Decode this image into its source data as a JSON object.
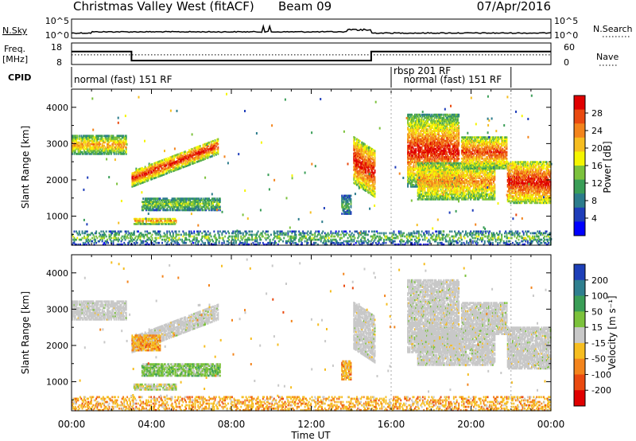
{
  "header": {
    "title": "Christmas Valley West (fitACF)",
    "beam": "Beam 09",
    "date": "07/Apr/2016"
  },
  "noise_panel": {
    "left_label": "N.Sky",
    "right_label": "N.Search",
    "left_ticks": [
      "10^5",
      "10^0"
    ],
    "right_ticks": [
      "10^5",
      "10^0"
    ]
  },
  "freq_panel": {
    "left_label_line1": "Freq.",
    "left_label_line2": "[MHz]",
    "right_label": "Nave",
    "left_ticks": [
      "18",
      "8"
    ],
    "right_ticks": [
      "60",
      "0"
    ],
    "segments": [
      {
        "start_h": 0,
        "end_h": 3.0,
        "freq_mhz": 14.0
      },
      {
        "start_h": 3.0,
        "end_h": 15.0,
        "freq_mhz": 9.8
      },
      {
        "start_h": 15.0,
        "end_h": 24.0,
        "freq_mhz": 14.0
      }
    ],
    "nave_level": 0.45
  },
  "cpid": {
    "label": "CPID",
    "programs": [
      {
        "text": "normal (fast) 151 RF",
        "start_h": 0.0,
        "row": 1
      },
      {
        "text": "rbsp 201 RF",
        "start_h": 16.0,
        "row": 0
      },
      {
        "text": "normal (fast) 151 RF",
        "start_h": 16.5,
        "row": 1
      }
    ],
    "divider_hours": [
      0.0,
      16.0,
      22.0
    ]
  },
  "chart_data": [
    {
      "type": "heatmap",
      "title": "",
      "xlabel": "Time UT",
      "ylabel": "Slant Range [km]",
      "xlim": [
        0,
        24
      ],
      "ylim": [
        200,
        4500
      ],
      "x_ticks": [
        "00:00",
        "04:00",
        "08:00",
        "12:00",
        "16:00",
        "20:00",
        "00:00"
      ],
      "y_ticks": [
        "1000",
        "2000",
        "3000",
        "4000"
      ],
      "colorbar": {
        "label": "Power [dB]",
        "ticks": [
          "4",
          "8",
          "12",
          "16",
          "20",
          "24",
          "28"
        ],
        "colors": [
          "#0000ff",
          "#1e3dba",
          "#2c7c8c",
          "#3a9e57",
          "#7cc23c",
          "#f5f500",
          "#f6bd20",
          "#f3841c",
          "#ea4a10",
          "#e00000"
        ]
      },
      "regions": [
        {
          "t0": 0.0,
          "t1": 2.7,
          "r_top": 3200,
          "r_bot": 2700,
          "slope": 0,
          "pmin": 10,
          "pmax": 22
        },
        {
          "t0": 3.0,
          "t1": 7.3,
          "r_top": 2250,
          "r_bot": 1800,
          "slope": 900,
          "pmin": 12,
          "pmax": 28
        },
        {
          "t0": 3.1,
          "t1": 5.2,
          "r_top": 950,
          "r_bot": 770,
          "slope": 0,
          "pmin": 12,
          "pmax": 22
        },
        {
          "t0": 3.5,
          "t1": 7.4,
          "r_top": 1500,
          "r_bot": 1150,
          "slope": 0,
          "pmin": 8,
          "pmax": 14
        },
        {
          "t0": 14.1,
          "t1": 15.2,
          "r_top": 3200,
          "r_bot": 1900,
          "slope": -400,
          "pmin": 14,
          "pmax": 28
        },
        {
          "t0": 16.8,
          "t1": 19.4,
          "r_top": 3800,
          "r_bot": 1800,
          "slope": 0,
          "pmin": 10,
          "pmax": 28
        },
        {
          "t0": 17.3,
          "t1": 21.2,
          "r_top": 2450,
          "r_bot": 1450,
          "slope": 0,
          "pmin": 12,
          "pmax": 22
        },
        {
          "t0": 19.5,
          "t1": 21.8,
          "r_top": 3200,
          "r_bot": 2300,
          "slope": 0,
          "pmin": 12,
          "pmax": 26
        },
        {
          "t0": 21.8,
          "t1": 24.0,
          "r_top": 2500,
          "r_bot": 1350,
          "slope": 0,
          "pmin": 14,
          "pmax": 28
        },
        {
          "t0": 13.5,
          "t1": 14.0,
          "r_top": 1550,
          "r_bot": 1050,
          "slope": 0,
          "pmin": 6,
          "pmax": 12
        },
        {
          "t0": 0.0,
          "t1": 24.0,
          "r_top": 600,
          "r_bot": 200,
          "slope": 0,
          "pmin": 4,
          "pmax": 14
        }
      ]
    },
    {
      "type": "heatmap",
      "title": "",
      "xlabel": "Time UT",
      "ylabel": "Slant Range [km]",
      "xlim": [
        0,
        24
      ],
      "ylim": [
        200,
        4500
      ],
      "x_ticks": [
        "00:00",
        "04:00",
        "08:00",
        "12:00",
        "16:00",
        "20:00",
        "00:00"
      ],
      "y_ticks": [
        "1000",
        "2000",
        "3000",
        "4000"
      ],
      "colorbar": {
        "label": "Velocity [m s⁻¹]",
        "ticks": [
          "200",
          "100",
          "50",
          "15",
          "-15",
          "-50",
          "-100",
          "-200"
        ],
        "colors": [
          "#1d3fb8",
          "#2f7f8f",
          "#3a9e57",
          "#7cc23c",
          "#c8c8c8",
          "#f6bd20",
          "#f3841c",
          "#ea4a10",
          "#e00000"
        ]
      },
      "regions": [
        {
          "t0": 0.0,
          "t1": 2.7,
          "r_top": 3200,
          "r_bot": 2700,
          "slope": 0,
          "vclass": "gray"
        },
        {
          "t0": 3.0,
          "t1": 7.3,
          "r_top": 2250,
          "r_bot": 1800,
          "slope": 900,
          "vclass": "gray"
        },
        {
          "t0": 3.0,
          "t1": 4.4,
          "r_top": 2300,
          "r_bot": 1850,
          "slope": 0,
          "vclass": "orange"
        },
        {
          "t0": 3.1,
          "t1": 5.2,
          "r_top": 950,
          "r_bot": 770,
          "slope": 0,
          "vclass": "mix"
        },
        {
          "t0": 3.5,
          "t1": 7.4,
          "r_top": 1500,
          "r_bot": 1150,
          "slope": 0,
          "vclass": "green"
        },
        {
          "t0": 14.1,
          "t1": 15.2,
          "r_top": 3200,
          "r_bot": 1900,
          "slope": -400,
          "vclass": "gray"
        },
        {
          "t0": 16.8,
          "t1": 19.4,
          "r_top": 3800,
          "r_bot": 1800,
          "slope": 0,
          "vclass": "gray"
        },
        {
          "t0": 17.3,
          "t1": 21.2,
          "r_top": 2450,
          "r_bot": 1450,
          "slope": 0,
          "vclass": "gray"
        },
        {
          "t0": 19.5,
          "t1": 21.8,
          "r_top": 3200,
          "r_bot": 2300,
          "slope": 0,
          "vclass": "gray"
        },
        {
          "t0": 21.8,
          "t1": 24.0,
          "r_top": 2500,
          "r_bot": 1350,
          "slope": 0,
          "vclass": "gray"
        },
        {
          "t0": 13.5,
          "t1": 14.0,
          "r_top": 1550,
          "r_bot": 1050,
          "slope": 0,
          "vclass": "orange"
        },
        {
          "t0": 0.0,
          "t1": 24.0,
          "r_top": 600,
          "r_bot": 200,
          "slope": 0,
          "vclass": "orange"
        }
      ]
    }
  ]
}
